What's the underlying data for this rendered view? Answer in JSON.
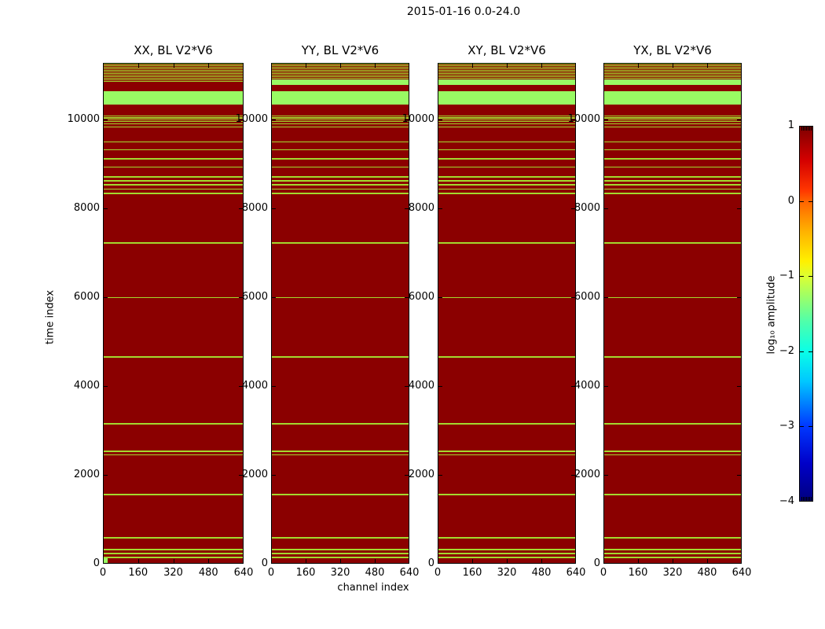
{
  "figure": {
    "suptitle": "2015-01-16 0.0-24.0",
    "background_color": "#ffffff"
  },
  "chart_data": {
    "type": "heatmap",
    "suptitle": "2015-01-16 0.0-24.0",
    "xlabel": "channel index",
    "ylabel": "time index",
    "channel_range": [
      0,
      640
    ],
    "time_range": [
      0,
      11270
    ],
    "x_ticks": [
      {
        "value": 0,
        "label": "0"
      },
      {
        "value": 160,
        "label": "160"
      },
      {
        "value": 320,
        "label": "320"
      },
      {
        "value": 480,
        "label": "480"
      },
      {
        "value": 640,
        "label": "640"
      }
    ],
    "y_ticks": [
      {
        "value": 0,
        "label": "0"
      },
      {
        "value": 2000,
        "label": "2000"
      },
      {
        "value": 4000,
        "label": "4000"
      },
      {
        "value": 6000,
        "label": "6000"
      },
      {
        "value": 8000,
        "label": "8000"
      },
      {
        "value": 10000,
        "label": "10000"
      }
    ],
    "panels": [
      {
        "title": "XX, BL V2*V6",
        "extra_top_band": false,
        "corner_marker": true
      },
      {
        "title": "YY, BL V2*V6",
        "extra_top_band": true,
        "corner_marker": false
      },
      {
        "title": "XY, BL V2*V6",
        "extra_top_band": true,
        "corner_marker": false
      },
      {
        "title": "YX, BL V2*V6",
        "extra_top_band": true,
        "corner_marker": false
      }
    ],
    "colors": {
      "background_value": "#8b0000",
      "band_green": "#99fb63",
      "line_green": "#a3d92f"
    },
    "bands": [
      [
        11245,
        11268,
        "l"
      ],
      [
        11210,
        11232,
        "l"
      ],
      [
        11174,
        11197,
        "l"
      ],
      [
        11139,
        11161,
        "l"
      ],
      [
        11103,
        11126,
        "l"
      ],
      [
        11068,
        11090,
        "l"
      ],
      [
        11032,
        11055,
        "l"
      ],
      [
        10997,
        11019,
        "l"
      ],
      [
        10961,
        10984,
        "l"
      ],
      [
        10926,
        10948,
        "l"
      ],
      [
        10890,
        10913,
        "l"
      ],
      [
        10855,
        10877,
        "l"
      ],
      [
        10346,
        10655,
        "g"
      ],
      [
        10085,
        10111,
        "l"
      ],
      [
        10040,
        10066,
        "l"
      ],
      [
        9996,
        10022,
        "l"
      ],
      [
        9952,
        9978,
        "l"
      ],
      [
        9907,
        9933,
        "l"
      ],
      [
        9836,
        9862,
        "l"
      ],
      [
        9500,
        9526,
        "l"
      ],
      [
        9315,
        9341,
        "l"
      ],
      [
        9120,
        9146,
        "l"
      ],
      [
        8934,
        8960,
        "l"
      ],
      [
        8713,
        8739,
        "l"
      ],
      [
        8624,
        8650,
        "l"
      ],
      [
        8536,
        8562,
        "l"
      ],
      [
        8438,
        8464,
        "l"
      ],
      [
        8341,
        8367,
        "l"
      ],
      [
        7227,
        7253,
        "l"
      ],
      [
        5996,
        6022,
        "l"
      ],
      [
        4660,
        4686,
        "l"
      ],
      [
        3155,
        3181,
        "l"
      ],
      [
        2536,
        2562,
        "l"
      ],
      [
        2456,
        2482,
        "l"
      ],
      [
        1562,
        1588,
        "l"
      ],
      [
        589,
        615,
        "l"
      ],
      [
        323,
        349,
        "l"
      ],
      [
        235,
        261,
        "l"
      ],
      [
        146,
        172,
        "l"
      ]
    ],
    "extra_top_band": [
      10790,
      10920,
      "g"
    ],
    "corner_marker": {
      "channel": [
        0,
        18
      ],
      "time": [
        0,
        110
      ],
      "color": "#99fb63"
    },
    "colorbar": {
      "label": "log₁₀ amplitude",
      "value_range": [
        -4,
        1
      ],
      "ticks": [
        {
          "value": 1,
          "label": "1"
        },
        {
          "value": 0,
          "label": "0"
        },
        {
          "value": -1,
          "label": "−1"
        },
        {
          "value": -2,
          "label": "−2"
        },
        {
          "value": -3,
          "label": "−3"
        },
        {
          "value": -4,
          "label": "−4"
        }
      ],
      "gradient_stops": [
        [
          0,
          "#7f0000"
        ],
        [
          9,
          "#d40000"
        ],
        [
          17,
          "#ff3600"
        ],
        [
          20,
          "#ff6400"
        ],
        [
          28,
          "#ffb200"
        ],
        [
          36,
          "#fff000"
        ],
        [
          40,
          "#dcff32"
        ],
        [
          46,
          "#96ff6e"
        ],
        [
          52,
          "#50ffaa"
        ],
        [
          60,
          "#0affe6"
        ],
        [
          68,
          "#00c8ff"
        ],
        [
          74,
          "#0080ff"
        ],
        [
          80,
          "#0038ff"
        ],
        [
          90,
          "#0000c8"
        ],
        [
          100,
          "#000080"
        ]
      ]
    }
  }
}
